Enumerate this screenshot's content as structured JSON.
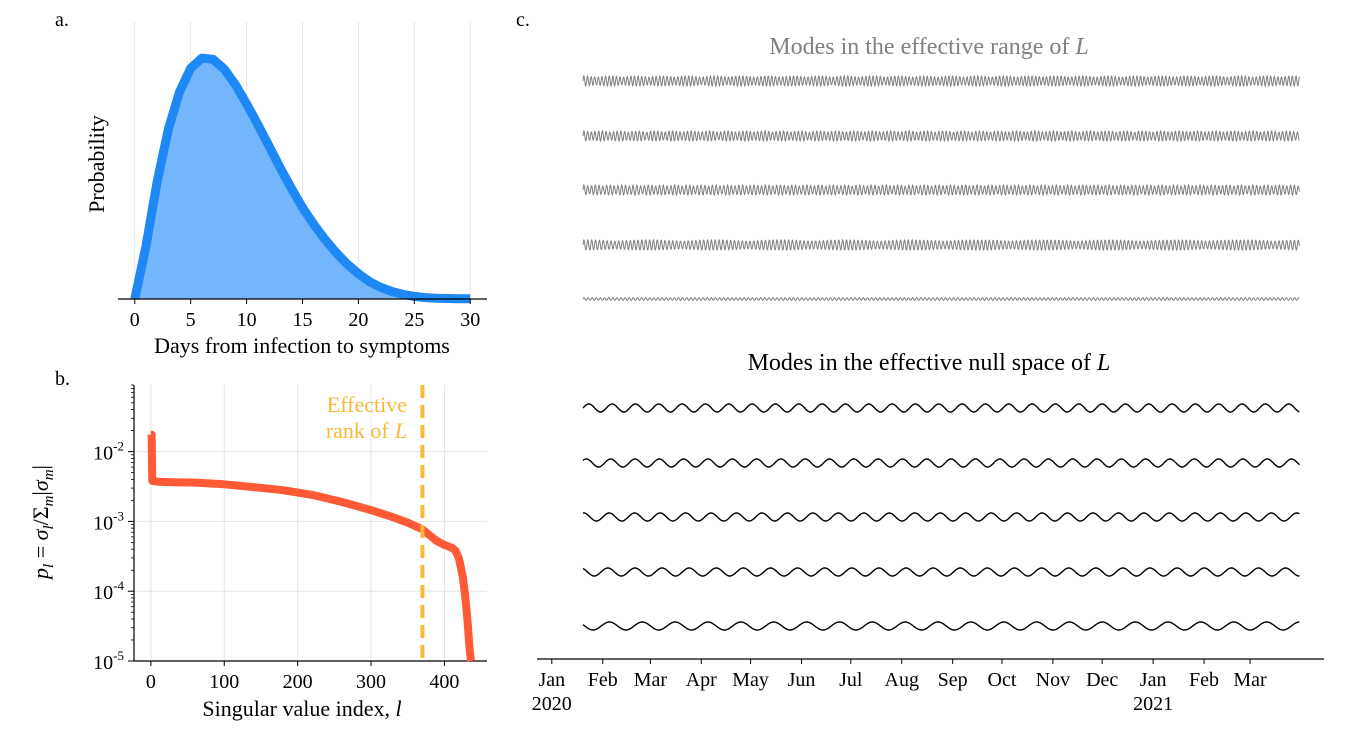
{
  "panels": {
    "a": {
      "letter": "a."
    },
    "b": {
      "letter": "b."
    },
    "c": {
      "letter": "c."
    }
  },
  "chart_data": [
    {
      "id": "a",
      "type": "area",
      "xlabel": "Days from infection to symptoms",
      "ylabel": "Probability",
      "xticks": [
        "0",
        "5",
        "10",
        "15",
        "20",
        "25",
        "30"
      ],
      "xlim": [
        -1.5,
        31.5
      ],
      "ylim": [
        0,
        0.115
      ],
      "grid": {
        "x": true,
        "y": false
      },
      "colors": {
        "line": "#1e88f5",
        "fill": "#73b6fc"
      },
      "series": [
        {
          "x": [
            0,
            1,
            2,
            3,
            4,
            5,
            6,
            7,
            8,
            9,
            10,
            11,
            12,
            13,
            14,
            15,
            16,
            17,
            18,
            19,
            20,
            21,
            22,
            23,
            24,
            25,
            26,
            27,
            28,
            29,
            30
          ],
          "values": [
            0,
            0.022,
            0.0486,
            0.0704,
            0.086,
            0.0958,
            0.1,
            0.0995,
            0.0955,
            0.089,
            0.081,
            0.0725,
            0.0635,
            0.0545,
            0.046,
            0.038,
            0.031,
            0.0248,
            0.0193,
            0.0145,
            0.0105,
            0.0072,
            0.0048,
            0.0031,
            0.0019,
            0.0011,
            0.0006,
            0.0003,
            0.0002,
            0.0001,
            0.0001
          ]
        }
      ]
    },
    {
      "id": "b",
      "type": "line",
      "xlabel": "Singular value index, l",
      "ylabel": "p_l = σ_l / Σ_m|σ_m|",
      "xticks": [
        "0",
        "100",
        "200",
        "300",
        "400"
      ],
      "yticks": [
        {
          "base": "10",
          "exp": "-2",
          "value": 0.01
        },
        {
          "base": "10",
          "exp": "-3",
          "value": 0.001
        },
        {
          "base": "10",
          "exp": "-4",
          "value": 0.0001
        },
        {
          "base": "10",
          "exp": "-5",
          "value": 1e-05
        }
      ],
      "yscale": "log",
      "xlim": [
        -23,
        458
      ],
      "ylim": [
        1e-05,
        0.09
      ],
      "grid": {
        "x": true,
        "y": true
      },
      "colors": {
        "line": "#ff5a36",
        "marker": "#f6b93b"
      },
      "series": [
        {
          "x": [
            0,
            1,
            2,
            10,
            30,
            60,
            100,
            140,
            180,
            220,
            260,
            300,
            330,
            350,
            360,
            370,
            380,
            390,
            400,
            410,
            415,
            420,
            425,
            428,
            430,
            432,
            434,
            436
          ],
          "values": [
            0.0175,
            0.0175,
            0.0038,
            0.0037,
            0.00365,
            0.0036,
            0.0034,
            0.0031,
            0.0028,
            0.0024,
            0.0019,
            0.00145,
            0.00115,
            0.00096,
            0.00086,
            0.00077,
            0.00063,
            0.00052,
            0.00046,
            0.00042,
            0.00038,
            0.00029,
            0.00016,
            9e-05,
            5.5e-05,
            3.2e-05,
            1.6e-05,
            1e-05
          ]
        }
      ],
      "annotation": {
        "line1": "Effective",
        "line2": "rank of",
        "symbol": "L",
        "x": 370
      }
    },
    {
      "id": "c",
      "type": "line",
      "title_range": "Modes in the effective range of",
      "title_null": "Modes in the effective null space of",
      "title_symbol": "L",
      "x_start": "2020-01-20",
      "x_end": "2021-03-31",
      "xticks": [
        {
          "label": "Jan",
          "year": "2020",
          "date": "2020-01-01"
        },
        {
          "label": "Feb",
          "date": "2020-02-01"
        },
        {
          "label": "Mar",
          "date": "2020-03-01"
        },
        {
          "label": "Apr",
          "date": "2020-04-01"
        },
        {
          "label": "May",
          "date": "2020-05-01"
        },
        {
          "label": "Jun",
          "date": "2020-06-01"
        },
        {
          "label": "Jul",
          "date": "2020-07-01"
        },
        {
          "label": "Aug",
          "date": "2020-08-01"
        },
        {
          "label": "Sep",
          "date": "2020-09-01"
        },
        {
          "label": "Oct",
          "date": "2020-10-01"
        },
        {
          "label": "Nov",
          "date": "2020-11-01"
        },
        {
          "label": "Dec",
          "date": "2020-12-01"
        },
        {
          "label": "Jan",
          "year": "2021",
          "date": "2021-01-01"
        },
        {
          "label": "Feb",
          "date": "2021-02-01"
        },
        {
          "label": "Mar",
          "date": "2021-03-01"
        }
      ],
      "colors": {
        "range": "#7f7f7f",
        "null": "#000000"
      },
      "range_modes": [
        {
          "period_days": 2.2,
          "beat_period_days": 16
        },
        {
          "period_days": 2.25,
          "beat_period_days": 11
        },
        {
          "period_days": 2.3,
          "beat_period_days": 8
        },
        {
          "period_days": 2.35,
          "beat_period_days": 40
        },
        {
          "period_days": 2.5,
          "beat_period_days": 400
        }
      ],
      "null_modes": [
        {
          "period_days": 14.2
        },
        {
          "period_days": 14.8
        },
        {
          "period_days": 15.5
        },
        {
          "period_days": 16.5
        },
        {
          "period_days": 20.0
        }
      ]
    }
  ]
}
